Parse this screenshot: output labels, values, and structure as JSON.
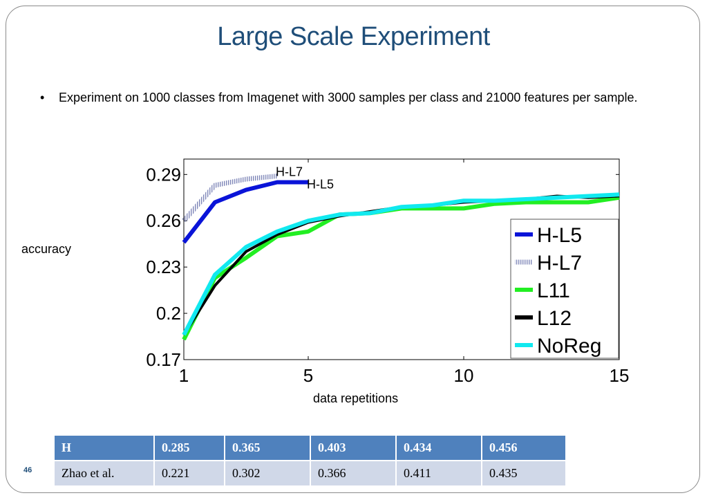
{
  "slide": {
    "title": "Large Scale Experiment",
    "bullet": "Experiment on 1000 classes from Imagenet with 3000 samples per class and 21000 features per sample.",
    "page_number": "46"
  },
  "chart_data": {
    "type": "line",
    "xlabel": "data repetitions",
    "ylabel": "accuracy",
    "xlim": [
      1,
      15
    ],
    "ylim": [
      0.17,
      0.3
    ],
    "xticks": [
      "1",
      "5",
      "10",
      "15"
    ],
    "yticks": [
      "0.29",
      "0.26",
      "0.23",
      "0.2",
      "0.17"
    ],
    "legend_position": "bottom-right",
    "series": [
      {
        "name": "H-L5",
        "color": "#0a14d8",
        "style": "solid",
        "x": [
          1,
          2,
          3,
          4,
          5
        ],
        "values": [
          0.246,
          0.272,
          0.28,
          0.285,
          0.285
        ]
      },
      {
        "name": "H-L7",
        "color": "#7e86b8",
        "style": "hatched",
        "x": [
          1,
          2,
          3,
          4
        ],
        "values": [
          0.26,
          0.283,
          0.287,
          0.289
        ]
      },
      {
        "name": "L11",
        "color": "#22ee22",
        "style": "solid",
        "x": [
          1,
          2,
          3,
          4,
          5,
          6,
          7,
          8,
          9,
          10,
          11,
          12,
          13,
          14,
          15
        ],
        "values": [
          0.183,
          0.223,
          0.236,
          0.25,
          0.253,
          0.264,
          0.265,
          0.268,
          0.268,
          0.268,
          0.271,
          0.272,
          0.272,
          0.272,
          0.275
        ]
      },
      {
        "name": "L12",
        "color": "#000000",
        "style": "solid",
        "x": [
          1,
          2,
          3,
          4,
          5,
          6,
          7,
          8,
          9,
          10,
          11,
          12,
          13,
          14,
          15
        ],
        "values": [
          0.186,
          0.218,
          0.24,
          0.251,
          0.259,
          0.263,
          0.266,
          0.269,
          0.27,
          0.272,
          0.273,
          0.274,
          0.276,
          0.275,
          0.276
        ]
      },
      {
        "name": "NoReg",
        "color": "#11e9ef",
        "style": "solid",
        "x": [
          1,
          2,
          3,
          4,
          5,
          6,
          7,
          8,
          9,
          10,
          11,
          12,
          13,
          14,
          15
        ],
        "values": [
          0.186,
          0.225,
          0.243,
          0.253,
          0.26,
          0.264,
          0.265,
          0.269,
          0.27,
          0.273,
          0.273,
          0.274,
          0.275,
          0.276,
          0.277
        ]
      }
    ],
    "annotations": [
      {
        "text": "H-L7",
        "x": 4.0,
        "y": 0.289
      },
      {
        "text": "H-L5",
        "x": 5.0,
        "y": 0.285
      }
    ]
  },
  "table": {
    "rows": [
      [
        "H",
        "0.285",
        "0.365",
        "0.403",
        "0.434",
        "0.456"
      ],
      [
        "Zhao et al.",
        "0.221",
        "0.302",
        "0.366",
        "0.411",
        "0.435"
      ]
    ]
  }
}
